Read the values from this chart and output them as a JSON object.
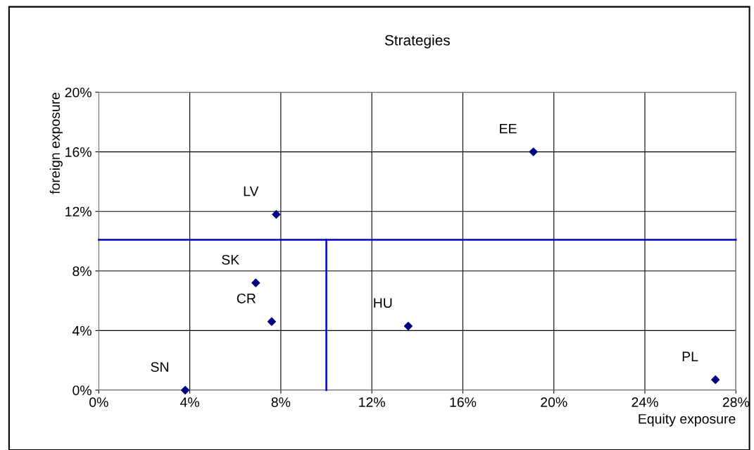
{
  "chart_data": {
    "type": "scatter",
    "title": "Strategies",
    "xlabel": "Equity exposure",
    "ylabel": "foreign exposure",
    "series": [
      {
        "marker": "diamond",
        "color": "#000080",
        "x": [
          3.8,
          6.9,
          7.6,
          7.8,
          13.6,
          19.1,
          27.1
        ],
        "values": [
          0,
          7.2,
          4.6,
          11.8,
          4.3,
          16.0,
          0.7
        ]
      },
      {
        "type": "line",
        "marker": "none",
        "color": "#0000cc",
        "x": [
          0,
          28
        ],
        "values": [
          10.1,
          10.1
        ]
      },
      {
        "type": "line",
        "marker": "none",
        "color": "#0000cc",
        "x": [
          10,
          10
        ],
        "values": [
          0,
          10.1
        ]
      }
    ],
    "annotations": [
      {
        "text": "SN",
        "x": 3.8,
        "y": 0
      },
      {
        "text": "SK",
        "x": 6.9,
        "y": 7.2
      },
      {
        "text": "CR",
        "x": 7.6,
        "y": 4.6
      },
      {
        "text": "LV",
        "x": 7.8,
        "y": 11.8
      },
      {
        "text": "HU",
        "x": 13.6,
        "y": 4.3
      },
      {
        "text": "EE",
        "x": 19.1,
        "y": 16.0
      },
      {
        "text": "PL",
        "x": 27.1,
        "y": 0.7
      }
    ],
    "xlim": [
      0,
      28
    ],
    "ylim": [
      0,
      20
    ],
    "xticks": [
      {
        "value": 0,
        "label": "0%"
      },
      {
        "value": 4,
        "label": "4%"
      },
      {
        "value": 8,
        "label": "8%"
      },
      {
        "value": 12,
        "label": "12%"
      },
      {
        "value": 16,
        "label": "16%"
      },
      {
        "value": 20,
        "label": "20%"
      },
      {
        "value": 24,
        "label": "24%"
      },
      {
        "value": 28,
        "label": "28%"
      }
    ],
    "yticks": [
      {
        "value": 0,
        "label": "0%"
      },
      {
        "value": 4,
        "label": "4%"
      },
      {
        "value": 8,
        "label": "8%"
      },
      {
        "value": 12,
        "label": "12%"
      },
      {
        "value": 16,
        "label": "16%"
      },
      {
        "value": 20,
        "label": "20%"
      }
    ],
    "grid": true,
    "legend": false
  }
}
